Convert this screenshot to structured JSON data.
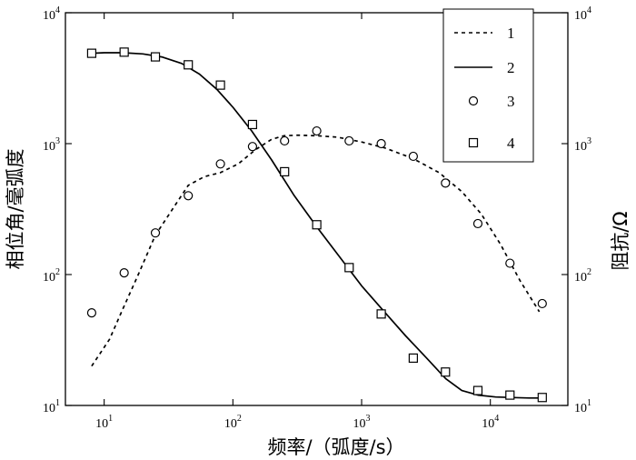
{
  "chart_data": {
    "type": "line",
    "xlabel": "频率/（弧度/s）",
    "ylabel_left": "相位角/毫弧度",
    "ylabel_right": "阻抗/Ω",
    "x_scale": "log",
    "y_scale": "log",
    "xlim": [
      5,
      40000
    ],
    "ylim": [
      10,
      10000
    ],
    "x_ticks": [
      {
        "value": 10,
        "base": "10",
        "exp": "1"
      },
      {
        "value": 100,
        "base": "10",
        "exp": "2"
      },
      {
        "value": 1000,
        "base": "10",
        "exp": "3"
      },
      {
        "value": 10000,
        "base": "10",
        "exp": "4"
      }
    ],
    "y_ticks": [
      {
        "value": 10,
        "base": "10",
        "exp": "1"
      },
      {
        "value": 100,
        "base": "10",
        "exp": "2"
      },
      {
        "value": 1000,
        "base": "10",
        "exp": "3"
      },
      {
        "value": 10000,
        "base": "10",
        "exp": "4"
      }
    ],
    "grid": false,
    "legend_position": "top-right",
    "series": [
      {
        "name": "1",
        "style": "dashed-line",
        "color": "#000000",
        "x": [
          8,
          11,
          14,
          18,
          25,
          35,
          45,
          60,
          80,
          110,
          150,
          200,
          250,
          320,
          450,
          650,
          1000,
          1500,
          2500,
          4000,
          6000,
          8500,
          12000,
          17000,
          24000
        ],
        "y": [
          20,
          32,
          55,
          95,
          200,
          330,
          480,
          560,
          600,
          700,
          900,
          1080,
          1150,
          1160,
          1150,
          1120,
          1030,
          930,
          770,
          600,
          430,
          290,
          170,
          90,
          52
        ]
      },
      {
        "name": "2",
        "style": "solid-line",
        "color": "#000000",
        "x": [
          8,
          10,
          14,
          20,
          28,
          40,
          55,
          75,
          100,
          140,
          200,
          300,
          450,
          700,
          1000,
          1500,
          2200,
          3200,
          4500,
          6000,
          8000,
          11000,
          15000,
          20000,
          25000
        ],
        "y": [
          4900,
          4950,
          4950,
          4850,
          4600,
          4100,
          3400,
          2600,
          1900,
          1250,
          750,
          400,
          230,
          130,
          82,
          52,
          34,
          23,
          16,
          13,
          12,
          11.6,
          11.5,
          11.4,
          11.4
        ]
      },
      {
        "name": "3",
        "style": "circle-marker",
        "color": "#000000",
        "x": [
          8,
          14.3,
          25,
          45,
          80,
          142,
          252,
          448,
          800,
          1420,
          2520,
          4480,
          8000,
          14200,
          25300
        ],
        "y": [
          51,
          103,
          208,
          400,
          700,
          950,
          1050,
          1250,
          1050,
          1000,
          800,
          500,
          245,
          122,
          60
        ]
      },
      {
        "name": "4",
        "style": "square-marker",
        "color": "#000000",
        "x": [
          8,
          14.3,
          25,
          45,
          80,
          142,
          252,
          448,
          800,
          1420,
          2520,
          4480,
          8000,
          14200,
          25300
        ],
        "y": [
          4900,
          5000,
          4600,
          4000,
          2800,
          1400,
          610,
          240,
          113,
          50,
          23,
          18,
          13,
          12,
          11.5
        ]
      }
    ]
  }
}
